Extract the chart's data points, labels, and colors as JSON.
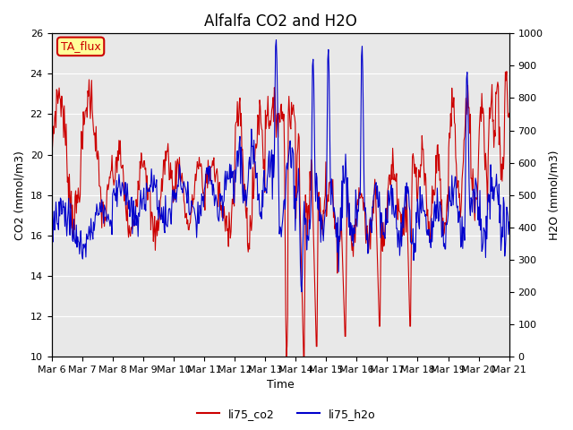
{
  "title": "Alfalfa CO2 and H2O",
  "xlabel": "Time",
  "ylabel_left": "CO2 (mmol/m3)",
  "ylabel_right": "H2O (mmol/m3)",
  "ylim_left": [
    10,
    26
  ],
  "ylim_right": [
    0,
    1000
  ],
  "yticks_left": [
    10,
    12,
    14,
    16,
    18,
    20,
    22,
    24,
    26
  ],
  "yticks_right": [
    0,
    100,
    200,
    300,
    400,
    500,
    600,
    700,
    800,
    900,
    1000
  ],
  "xtick_labels": [
    "Mar 6",
    "Mar 7",
    "Mar 8",
    "Mar 9",
    "Mar 10",
    "Mar 11",
    "Mar 12",
    "Mar 13",
    "Mar 14",
    "Mar 15",
    "Mar 16",
    "Mar 17",
    "Mar 18",
    "Mar 19",
    "Mar 20",
    "Mar 21"
  ],
  "color_co2": "#cc0000",
  "color_h2o": "#0000cc",
  "legend_co2": "li75_co2",
  "legend_h2o": "li75_h2o",
  "annotation_text": "TA_flux",
  "annotation_color": "#cc0000",
  "annotation_bg": "#ffff99",
  "plot_bg_color": "#e8e8e8",
  "grid_color": "#ffffff",
  "title_fontsize": 12,
  "axis_fontsize": 9,
  "tick_fontsize": 8
}
